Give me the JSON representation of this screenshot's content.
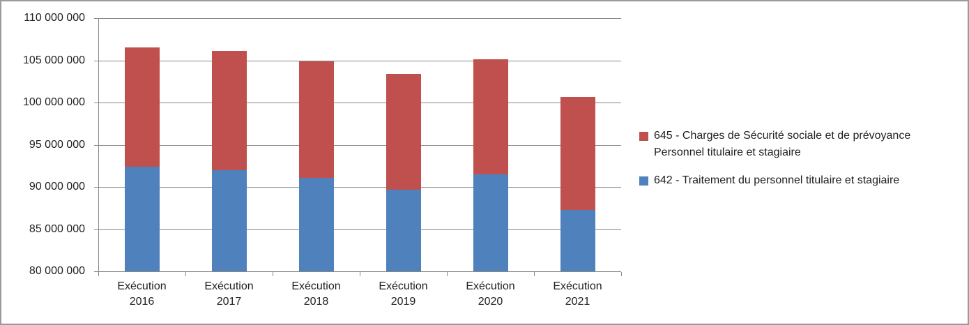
{
  "chart_data": {
    "type": "bar",
    "stacked": true,
    "title": "",
    "xlabel": "",
    "ylabel": "",
    "categories": [
      "Exécution\n2016",
      "Exécution\n2017",
      "Exécution\n2018",
      "Exécution\n2019",
      "Exécution\n2020",
      "Exécution\n2021"
    ],
    "series": [
      {
        "name": "642 - Traitement du personnel titulaire et stagiaire",
        "color": "#4F81BD",
        "values": [
          92400000,
          92000000,
          91100000,
          89700000,
          91500000,
          87300000
        ]
      },
      {
        "name": "645 - Charges de Sécurité sociale et de prévoyance Personnel titulaire et stagiaire",
        "color": "#C0504D",
        "values": [
          14100000,
          14100000,
          13800000,
          13700000,
          13600000,
          13400000
        ]
      }
    ],
    "ylim": [
      80000000,
      110000000
    ],
    "ytick_step": 5000000,
    "ytick_labels": [
      "110 000 000",
      "105 000 000",
      "100 000 000",
      "95 000 000",
      "90 000 000",
      "85 000 000",
      "80 000 000"
    ],
    "grid": true,
    "legend_position": "right",
    "legend": [
      {
        "color": "#C0504D",
        "lines": [
          "645 - Charges de Sécurité sociale et de prévoyance",
          "Personnel titulaire et stagiaire"
        ]
      },
      {
        "color": "#4F81BD",
        "lines": [
          "642 - Traitement du personnel titulaire et stagiaire"
        ]
      }
    ]
  },
  "style": {
    "grid_color": "#878787",
    "axis_color": "#878787",
    "text_color": "#1F1F1F",
    "frame_color": "#9A9A9A",
    "background": "#FFFFFF"
  }
}
